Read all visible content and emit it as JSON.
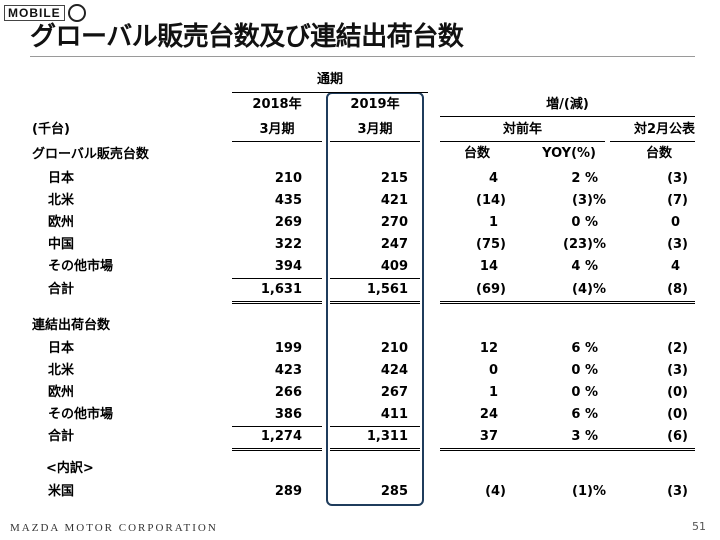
{
  "watermark": {
    "text": "MOBILE"
  },
  "title": "グローバル販売台数及び連結出荷台数",
  "headers": {
    "period_group": "通期",
    "col2018": "2018年",
    "col2019": "2019年",
    "col2018_sub": "3月期",
    "col2019_sub": "3月期",
    "change_group": "増/(減)",
    "yoy_group": "対前年",
    "feb_group": "対2月公表",
    "unit": "(千台)",
    "units_label": "台数",
    "yoy_label": "YOY(%)",
    "feb_units_label": "台数"
  },
  "sections": [
    {
      "title": "グローバル販売台数",
      "rows": [
        {
          "label": "日本",
          "v2018": "210",
          "v2019": "215",
          "diff": "4",
          "yoy": "2 %",
          "feb": "(3)"
        },
        {
          "label": "北米",
          "v2018": "435",
          "v2019": "421",
          "diff": "(14)",
          "yoy": "(3)%",
          "feb": "(7)"
        },
        {
          "label": "欧州",
          "v2018": "269",
          "v2019": "270",
          "diff": "1",
          "yoy": "0 %",
          "feb": "0"
        },
        {
          "label": "中国",
          "v2018": "322",
          "v2019": "247",
          "diff": "(75)",
          "yoy": "(23)%",
          "feb": "(3)"
        },
        {
          "label": "その他市場",
          "v2018": "394",
          "v2019": "409",
          "diff": "14",
          "yoy": "4 %",
          "feb": "4"
        },
        {
          "label": "合計",
          "v2018": "1,631",
          "v2019": "1,561",
          "diff": "(69)",
          "yoy": "(4)%",
          "feb": "(8)"
        }
      ]
    },
    {
      "title": "連結出荷台数",
      "rows": [
        {
          "label": "日本",
          "v2018": "199",
          "v2019": "210",
          "diff": "12",
          "yoy": "6 %",
          "feb": "(2)"
        },
        {
          "label": "北米",
          "v2018": "423",
          "v2019": "424",
          "diff": "0",
          "yoy": "0 %",
          "feb": "(3)"
        },
        {
          "label": "欧州",
          "v2018": "266",
          "v2019": "267",
          "diff": "1",
          "yoy": "0 %",
          "feb": "(0)"
        },
        {
          "label": "その他市場",
          "v2018": "386",
          "v2019": "411",
          "diff": "24",
          "yoy": "6 %",
          "feb": "(0)"
        },
        {
          "label": "合計",
          "v2018": "1,274",
          "v2019": "1,311",
          "diff": "37",
          "yoy": "3 %",
          "feb": "(6)"
        }
      ]
    }
  ],
  "breakdown": {
    "title": "<内訳>",
    "rows": [
      {
        "label": "米国",
        "v2018": "289",
        "v2019": "285",
        "diff": "(4)",
        "yoy": "(1)%",
        "feb": "(3)"
      }
    ]
  },
  "footer": {
    "company": "MAZDA MOTOR CORPORATION",
    "page": "51"
  }
}
